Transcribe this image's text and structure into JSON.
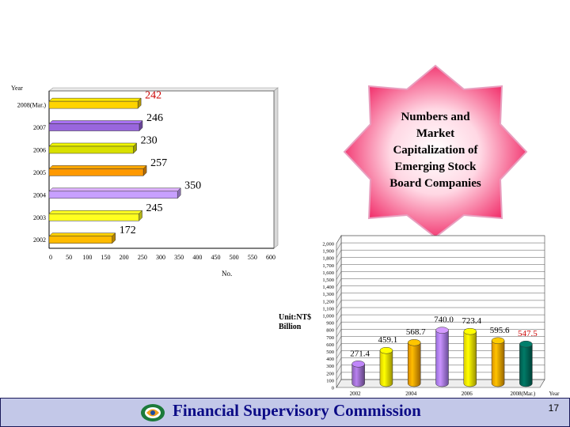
{
  "chart_data": [
    {
      "type": "bar",
      "orientation": "horizontal",
      "ylabel": "Year",
      "xlabel": "No.",
      "categories": [
        "2008(Mar.)",
        "2007",
        "2006",
        "2005",
        "2004",
        "2003",
        "2002"
      ],
      "values": [
        242,
        246,
        230,
        257,
        350,
        245,
        172
      ],
      "value_labels": [
        "242",
        "246",
        "230",
        "257",
        "350",
        "245",
        "172"
      ],
      "bar_colors": [
        "#ffd400",
        "#9966dd",
        "#d9e000",
        "#ff9900",
        "#c8a0ff",
        "#ffff20",
        "#ffbb00"
      ],
      "label_colors": [
        "#cc0000",
        "#000000",
        "#000000",
        "#000000",
        "#000000",
        "#000000",
        "#000000"
      ],
      "xlim": [
        0,
        600
      ],
      "xticks": [
        "0",
        "50",
        "100",
        "150",
        "200",
        "250",
        "300",
        "350",
        "400",
        "450",
        "500",
        "550",
        "600"
      ],
      "grid": false
    },
    {
      "type": "bar",
      "style": "3d-cylinder",
      "xlabel": "Year",
      "ylabel": "Unit:NT$ Billion",
      "categories": [
        "2002",
        "2003",
        "2004",
        "2005",
        "2006",
        "2007",
        "2008(Mar.)"
      ],
      "x_tick_labels": [
        "2002",
        "2004",
        "2006",
        "2008(Mar.)"
      ],
      "values": [
        271.4,
        459.1,
        568.7,
        740.0,
        723.4,
        595.6,
        547.5
      ],
      "value_labels": [
        "271.4",
        "459.1",
        "568.7",
        "740.0",
        "723.4",
        "595.6",
        "547.5"
      ],
      "bar_colors": [
        "#a070d0",
        "#ffee00",
        "#ffa400",
        "#b080ff",
        "#ffee00",
        "#ffaa00",
        "#006a5a"
      ],
      "label_colors": [
        "#000000",
        "#000000",
        "#000000",
        "#000000",
        "#000000",
        "#000000",
        "#cc0000"
      ],
      "ylim": [
        0,
        2000
      ],
      "yticks": [
        "0",
        "100",
        "200",
        "300",
        "400",
        "500",
        "600",
        "700",
        "800",
        "900",
        "1,000",
        "1,100",
        "1,200",
        "1,300",
        "1,400",
        "1,500",
        "1,600",
        "1,700",
        "1,800",
        "1,900",
        "2,000"
      ],
      "grid": true
    }
  ],
  "callout": {
    "lines": [
      "Numbers and",
      "Market",
      "Capitalization of",
      "Emerging Stock",
      "Board Companies"
    ],
    "fill": "#f02060"
  },
  "unit_label": {
    "line1": "Unit:NT$",
    "line2": "Billion"
  },
  "footer": {
    "title": "Financial Supervisory Commission",
    "page_number": "17",
    "background": "#c3c8e8",
    "text_color": "#0b0b86"
  }
}
